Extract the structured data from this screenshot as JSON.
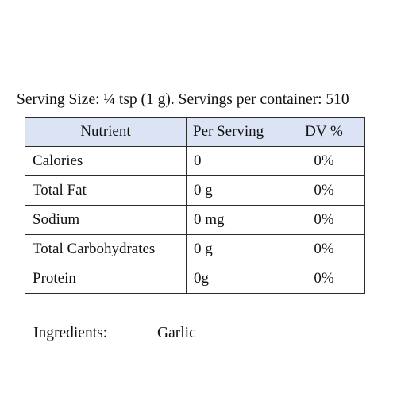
{
  "serving_line": "Serving Size: ¼ tsp (1 g). Servings per container: 510",
  "table": {
    "headers": {
      "nutrient": "Nutrient",
      "per_serving": "Per Serving",
      "dv": "DV %"
    },
    "rows": [
      {
        "nutrient": "Calories",
        "per_serving": "0",
        "dv": "0%"
      },
      {
        "nutrient": "Total Fat",
        "per_serving": "0 g",
        "dv": "0%"
      },
      {
        "nutrient": "Sodium",
        "per_serving": "0 mg",
        "dv": "0%"
      },
      {
        "nutrient": "Total Carbohydrates",
        "per_serving": "0 g",
        "dv": "0%"
      },
      {
        "nutrient": "Protein",
        "per_serving": "0g",
        "dv": "0%"
      }
    ]
  },
  "ingredients": {
    "label": "Ingredients:",
    "value": "Garlic"
  },
  "colors": {
    "header_background": "#dbe3f4",
    "border": "#2b2b2b"
  }
}
